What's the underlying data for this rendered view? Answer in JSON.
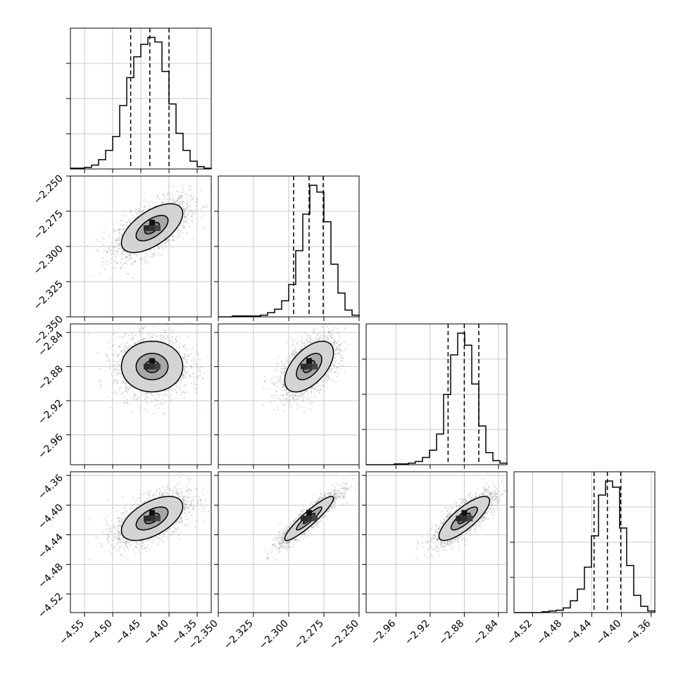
{
  "chart_data": {
    "type": "corner",
    "title": "",
    "parameters": [
      "",
      "",
      "",
      ""
    ],
    "quantiles": [
      0.16,
      0.5,
      0.84
    ],
    "colors": {
      "line": "#000000",
      "grid": "#c8c8c8",
      "points": "#9a9a9a"
    },
    "grid": true,
    "ranges": [
      [
        -4.575,
        -4.325
      ],
      [
        -2.35,
        -2.25
      ],
      [
        -2.995,
        -2.83
      ],
      [
        -4.545,
        -4.355
      ]
    ],
    "ticks": [
      [
        -4.55,
        -4.5,
        -4.45,
        -4.4,
        -4.35
      ],
      [
        -2.35,
        -2.325,
        -2.3,
        -2.275,
        -2.25
      ],
      [
        -2.96,
        -2.92,
        -2.88,
        -2.84
      ],
      [
        -4.52,
        -4.48,
        -4.44,
        -4.4,
        -4.36
      ]
    ],
    "tick_labels": [
      [
        "−4.55",
        "−4.50",
        "−4.45",
        "−4.40",
        "−4.35"
      ],
      [
        "−2.350",
        "−2.325",
        "−2.300",
        "−2.275",
        "−2.250"
      ],
      [
        "−2.96",
        "−2.92",
        "−2.88",
        "−2.84"
      ],
      [
        "−4.52",
        "−4.48",
        "−4.44",
        "−4.40",
        "−4.36"
      ]
    ],
    "marginals": [
      {
        "param": 0,
        "q16": -4.468,
        "q50": -4.434,
        "q84": -4.4,
        "bins": [
          -4.575,
          -4.5625,
          -4.55,
          -4.5375,
          -4.525,
          -4.5125,
          -4.5,
          -4.4875,
          -4.475,
          -4.4625,
          -4.45,
          -4.4375,
          -4.425,
          -4.4125,
          -4.4,
          -4.3875,
          -4.375,
          -4.3625,
          -4.35,
          -4.3375,
          -4.325
        ],
        "counts": [
          1,
          1,
          2,
          5,
          12,
          24,
          42,
          82,
          118,
          145,
          161,
          170,
          164,
          126,
          84,
          46,
          24,
          10,
          3,
          1
        ]
      },
      {
        "param": 1,
        "q16": -2.2965,
        "q50": -2.2855,
        "q84": -2.2755,
        "bins": [
          -2.35,
          -2.345,
          -2.34,
          -2.335,
          -2.33,
          -2.325,
          -2.32,
          -2.315,
          -2.31,
          -2.305,
          -2.3,
          -2.295,
          -2.29,
          -2.285,
          -2.28,
          -2.275,
          -2.27,
          -2.265,
          -2.26,
          -2.255,
          -2.25
        ],
        "counts": [
          0,
          0,
          1,
          1,
          1,
          1,
          2,
          5,
          9,
          19,
          38,
          78,
          121,
          155,
          147,
          112,
          62,
          28,
          8,
          2
        ]
      },
      {
        "param": 2,
        "q16": -2.899,
        "q50": -2.88,
        "q84": -2.863,
        "bins": [
          -2.995,
          -2.98675,
          -2.9785,
          -2.97025,
          -2.962,
          -2.95375,
          -2.9455,
          -2.93725,
          -2.929,
          -2.92075,
          -2.9125,
          -2.90425,
          -2.896,
          -2.88775,
          -2.8795,
          -2.87125,
          -2.863,
          -2.85475,
          -2.8465,
          -2.83825,
          -2.83
        ],
        "counts": [
          0,
          0,
          0,
          0,
          1,
          1,
          2,
          4,
          9,
          18,
          38,
          87,
          136,
          163,
          148,
          100,
          48,
          15,
          5,
          2
        ]
      },
      {
        "param": 3,
        "q16": -4.437,
        "q50": -4.419,
        "q84": -4.401,
        "bins": [
          -4.545,
          -4.5355,
          -4.526,
          -4.5165,
          -4.507,
          -4.4975,
          -4.488,
          -4.4785,
          -4.469,
          -4.4595,
          -4.45,
          -4.4405,
          -4.431,
          -4.4215,
          -4.412,
          -4.4025,
          -4.393,
          -4.3835,
          -4.374,
          -4.3645,
          -4.355
        ],
        "counts": [
          0,
          0,
          0,
          0,
          1,
          2,
          3,
          6,
          15,
          30,
          58,
          98,
          150,
          168,
          160,
          108,
          60,
          22,
          8,
          2
        ]
      }
    ],
    "joints": [
      {
        "x": 0,
        "y": 1,
        "center": [
          -4.43,
          -2.287
        ],
        "sd": [
          0.033,
          0.0105
        ],
        "rho": 0.6
      },
      {
        "x": 0,
        "y": 2,
        "center": [
          -4.43,
          -2.88
        ],
        "sd": [
          0.033,
          0.018
        ],
        "rho": 0.0
      },
      {
        "x": 1,
        "y": 2,
        "center": [
          -2.2855,
          -2.88
        ],
        "sd": [
          0.0105,
          0.018
        ],
        "rho": 0.55
      },
      {
        "x": 0,
        "y": 3,
        "center": [
          -4.43,
          -4.418
        ],
        "sd": [
          0.033,
          0.018
        ],
        "rho": 0.55
      },
      {
        "x": 1,
        "y": 3,
        "center": [
          -2.2855,
          -4.418
        ],
        "sd": [
          0.0105,
          0.018
        ],
        "rho": 0.92
      },
      {
        "x": 2,
        "y": 3,
        "center": [
          -2.88,
          -4.418
        ],
        "sd": [
          0.018,
          0.018
        ],
        "rho": 0.8
      }
    ],
    "contour_levels": [
      0.39,
      0.86,
      1.65
    ]
  }
}
